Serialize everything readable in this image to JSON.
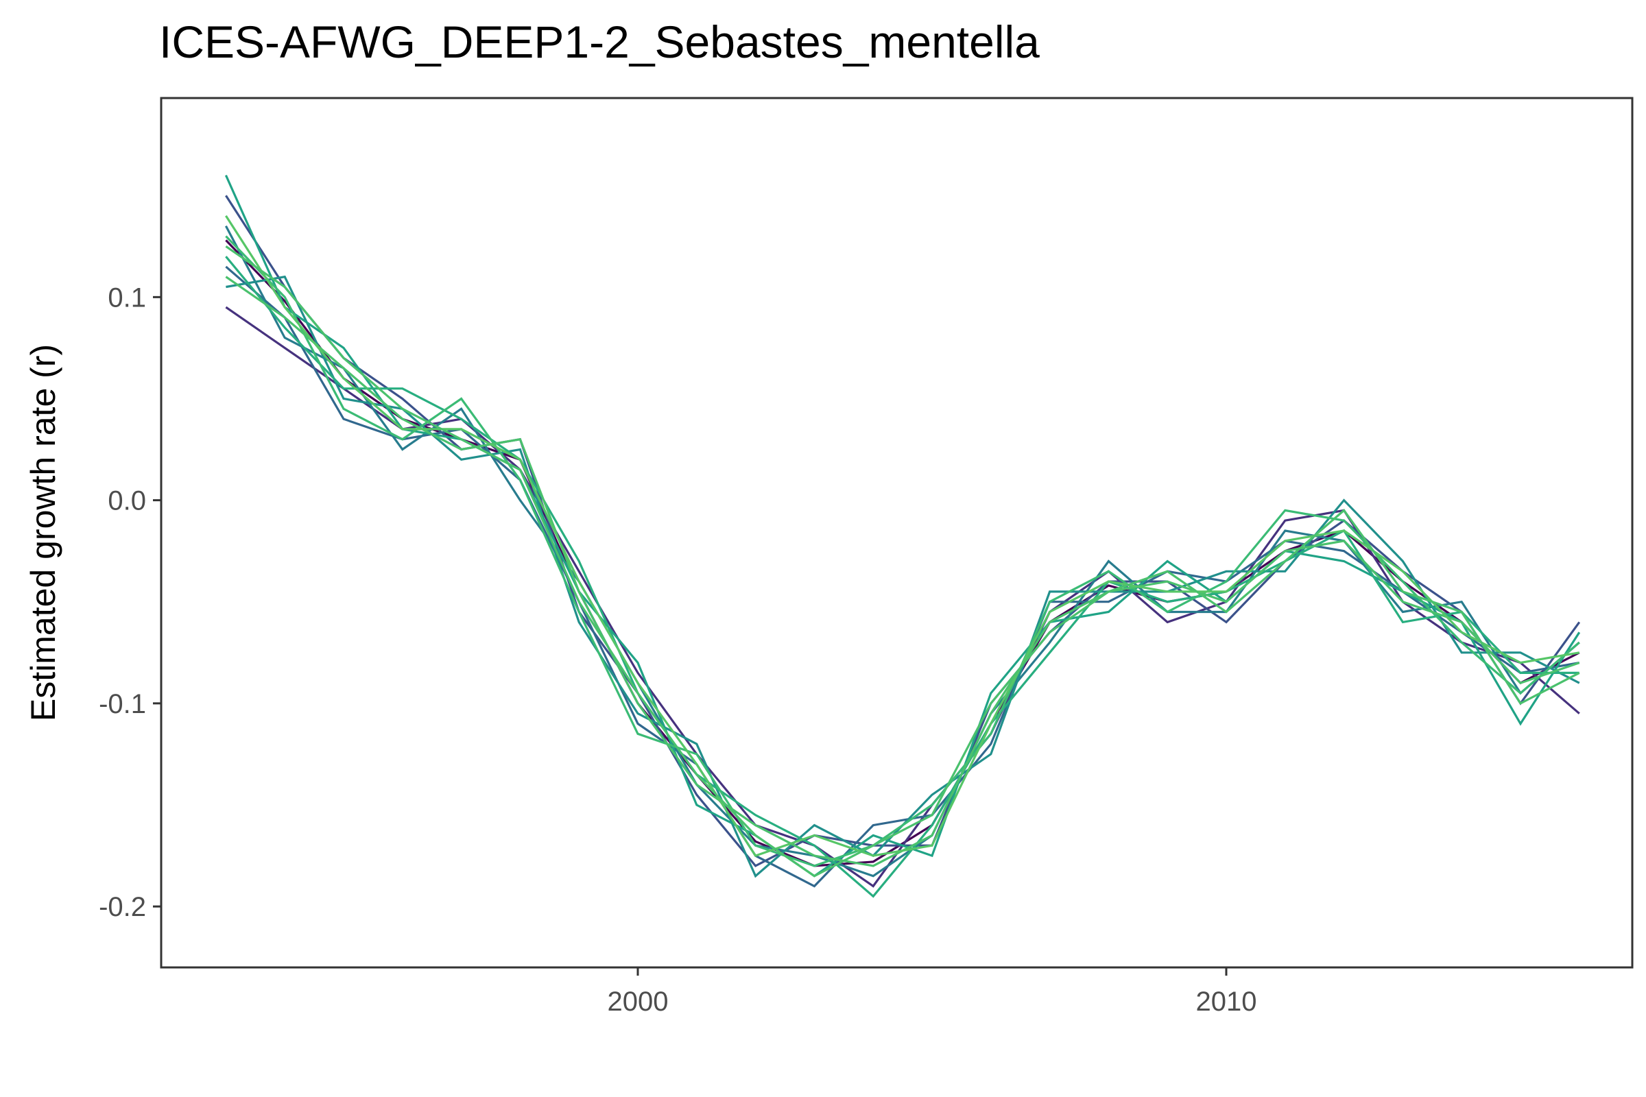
{
  "chart_data": {
    "type": "line",
    "title": "ICES-AFWG_DEEP1-2_Sebastes_mentella",
    "xlabel": "",
    "ylabel": "Estimated growth rate (r)",
    "xlim": [
      1991.9,
      2016.9
    ],
    "ylim": [
      -0.23,
      0.198
    ],
    "x_ticks": [
      2000,
      2010
    ],
    "x_tick_labels": [
      "2000",
      "2010"
    ],
    "y_ticks": [
      -0.2,
      -0.1,
      0.0,
      0.1
    ],
    "y_tick_labels": [
      "-0.2",
      "-0.1",
      "0.0",
      "0.1"
    ],
    "grid": false,
    "legend": "none",
    "x": [
      1993,
      1994,
      1995,
      1996,
      1997,
      1998,
      1999,
      2000,
      2001,
      2002,
      2003,
      2004,
      2005,
      2006,
      2007,
      2008,
      2009,
      2010,
      2011,
      2012,
      2013,
      2014,
      2015,
      2016
    ],
    "series": [
      {
        "values": [
          0.128,
          0.098,
          0.06,
          0.04,
          0.03,
          0.02,
          -0.045,
          -0.1,
          -0.135,
          -0.168,
          -0.18,
          -0.178,
          -0.16,
          -0.11,
          -0.06,
          -0.042,
          -0.05,
          -0.045,
          -0.025,
          -0.015,
          -0.04,
          -0.06,
          -0.09,
          -0.075
        ]
      },
      {
        "values": [
          0.095,
          0.075,
          0.055,
          0.035,
          0.04,
          0.015,
          -0.035,
          -0.085,
          -0.125,
          -0.16,
          -0.17,
          -0.19,
          -0.15,
          -0.115,
          -0.055,
          -0.035,
          -0.06,
          -0.05,
          -0.01,
          -0.005,
          -0.05,
          -0.07,
          -0.08,
          -0.105
        ]
      },
      {
        "values": [
          0.15,
          0.105,
          0.07,
          0.05,
          0.025,
          0.03,
          -0.055,
          -0.095,
          -0.145,
          -0.18,
          -0.165,
          -0.17,
          -0.17,
          -0.1,
          -0.065,
          -0.04,
          -0.04,
          -0.06,
          -0.03,
          -0.01,
          -0.035,
          -0.055,
          -0.1,
          -0.06
        ]
      },
      {
        "values": [
          0.115,
          0.09,
          0.04,
          0.03,
          0.035,
          0.01,
          -0.05,
          -0.11,
          -0.13,
          -0.175,
          -0.19,
          -0.16,
          -0.155,
          -0.12,
          -0.05,
          -0.05,
          -0.035,
          -0.04,
          -0.02,
          -0.025,
          -0.045,
          -0.065,
          -0.085,
          -0.08
        ]
      },
      {
        "values": [
          0.135,
          0.08,
          0.065,
          0.025,
          0.045,
          0.0,
          -0.04,
          -0.09,
          -0.14,
          -0.17,
          -0.175,
          -0.185,
          -0.165,
          -0.105,
          -0.07,
          -0.03,
          -0.055,
          -0.055,
          -0.015,
          -0.02,
          -0.055,
          -0.05,
          -0.095,
          -0.07
        ]
      },
      {
        "values": [
          0.105,
          0.11,
          0.05,
          0.045,
          0.02,
          0.025,
          -0.06,
          -0.105,
          -0.12,
          -0.185,
          -0.16,
          -0.175,
          -0.145,
          -0.125,
          -0.045,
          -0.045,
          -0.045,
          -0.035,
          -0.035,
          0.0,
          -0.03,
          -0.075,
          -0.075,
          -0.09
        ]
      },
      {
        "values": [
          0.16,
          0.095,
          0.075,
          0.035,
          0.03,
          0.015,
          -0.045,
          -0.08,
          -0.15,
          -0.165,
          -0.185,
          -0.165,
          -0.175,
          -0.095,
          -0.06,
          -0.055,
          -0.03,
          -0.05,
          -0.025,
          -0.03,
          -0.045,
          -0.06,
          -0.11,
          -0.065
        ]
      },
      {
        "values": [
          0.12,
          0.085,
          0.055,
          0.055,
          0.04,
          0.02,
          -0.03,
          -0.095,
          -0.135,
          -0.155,
          -0.17,
          -0.195,
          -0.16,
          -0.11,
          -0.075,
          -0.04,
          -0.05,
          -0.045,
          -0.03,
          -0.015,
          -0.06,
          -0.055,
          -0.085,
          -0.085
        ]
      },
      {
        "values": [
          0.13,
          0.1,
          0.045,
          0.03,
          0.05,
          0.01,
          -0.055,
          -0.115,
          -0.125,
          -0.17,
          -0.18,
          -0.17,
          -0.15,
          -0.115,
          -0.05,
          -0.035,
          -0.055,
          -0.04,
          -0.005,
          -0.01,
          -0.04,
          -0.07,
          -0.095,
          -0.07
        ]
      },
      {
        "values": [
          0.11,
          0.09,
          0.065,
          0.04,
          0.025,
          0.03,
          -0.045,
          -0.1,
          -0.14,
          -0.16,
          -0.175,
          -0.18,
          -0.165,
          -0.105,
          -0.06,
          -0.045,
          -0.04,
          -0.05,
          -0.025,
          -0.02,
          -0.05,
          -0.06,
          -0.09,
          -0.08
        ]
      },
      {
        "values": [
          0.14,
          0.095,
          0.06,
          0.035,
          0.035,
          0.02,
          -0.04,
          -0.09,
          -0.13,
          -0.175,
          -0.165,
          -0.175,
          -0.17,
          -0.11,
          -0.055,
          -0.04,
          -0.045,
          -0.045,
          -0.02,
          -0.015,
          -0.035,
          -0.065,
          -0.08,
          -0.075
        ]
      },
      {
        "values": [
          0.125,
          0.105,
          0.07,
          0.045,
          0.03,
          0.015,
          -0.05,
          -0.095,
          -0.135,
          -0.165,
          -0.185,
          -0.17,
          -0.155,
          -0.1,
          -0.065,
          -0.045,
          -0.035,
          -0.055,
          -0.03,
          -0.005,
          -0.045,
          -0.055,
          -0.1,
          -0.085
        ]
      }
    ]
  },
  "colors": {
    "series": [
      "#440154",
      "#46327e",
      "#3b528b",
      "#31688e",
      "#287c8e",
      "#21908c",
      "#20a386",
      "#28ae80",
      "#3bbb75",
      "#4ac16d",
      "#56c667",
      "#4ac16d"
    ],
    "axis_text": "#4d4d4d",
    "panel_border": "#333333"
  }
}
